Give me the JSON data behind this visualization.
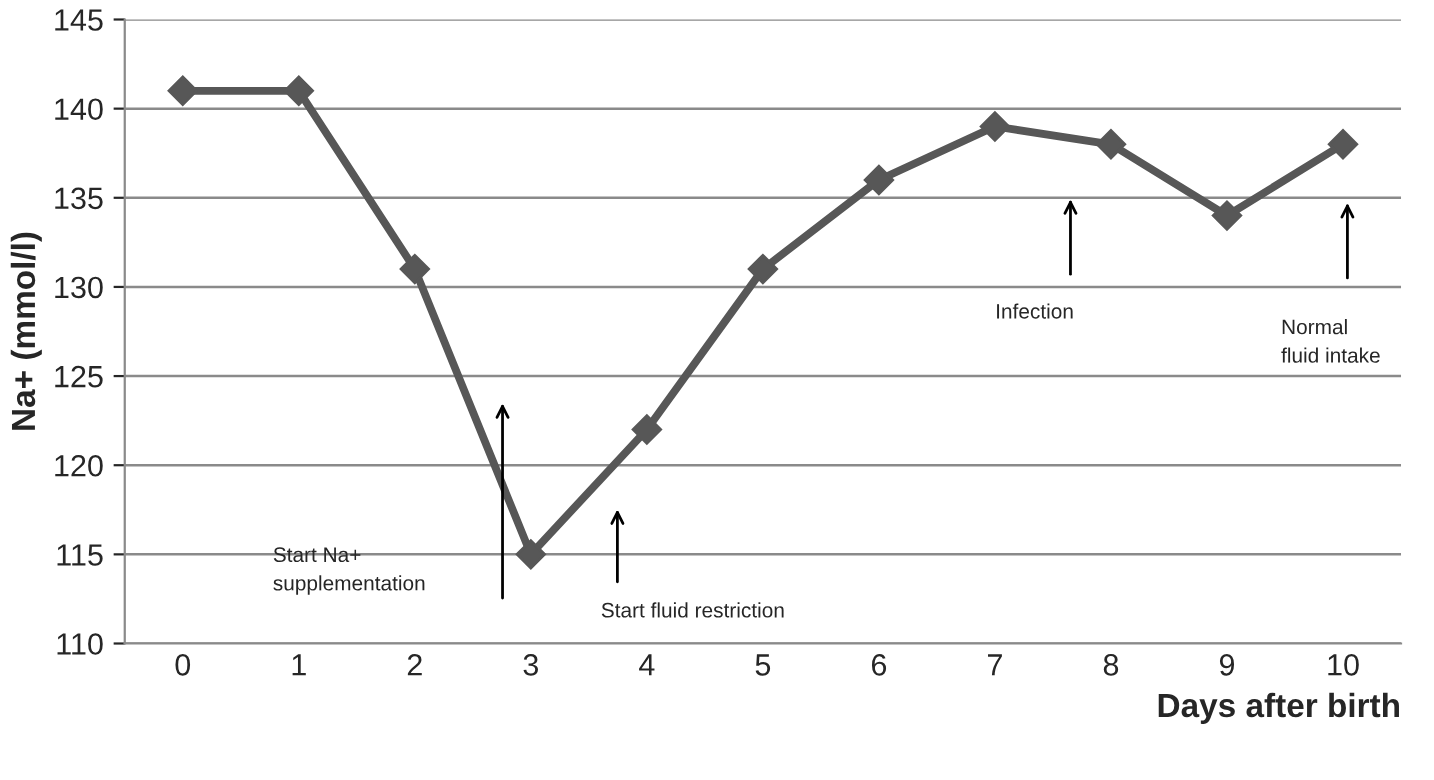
{
  "chart_data": {
    "type": "line",
    "xlabel": "Days after birth",
    "ylabel": "Na+ (mmol/l)",
    "x": [
      0,
      1,
      2,
      3,
      4,
      5,
      6,
      7,
      8,
      9,
      10
    ],
    "series": [
      {
        "color": "#575757",
        "values": [
          141,
          141,
          131,
          115,
          122,
          131,
          136,
          139,
          138,
          134,
          138
        ]
      }
    ],
    "xlim": [
      -0.5,
      10.5
    ],
    "xticks": [
      0,
      1,
      2,
      3,
      4,
      5,
      6,
      7,
      8,
      9,
      10
    ],
    "ylim": [
      110,
      145
    ],
    "yticks": [
      110,
      115,
      120,
      125,
      130,
      135,
      140,
      145
    ],
    "grid": "y",
    "marker": "diamond",
    "line_style": "solid",
    "legend": false,
    "annotations": [
      "Start Na+\nsupplementation",
      "Start fluid restriction",
      "Infection",
      "Normal\nfluid intake"
    ]
  }
}
